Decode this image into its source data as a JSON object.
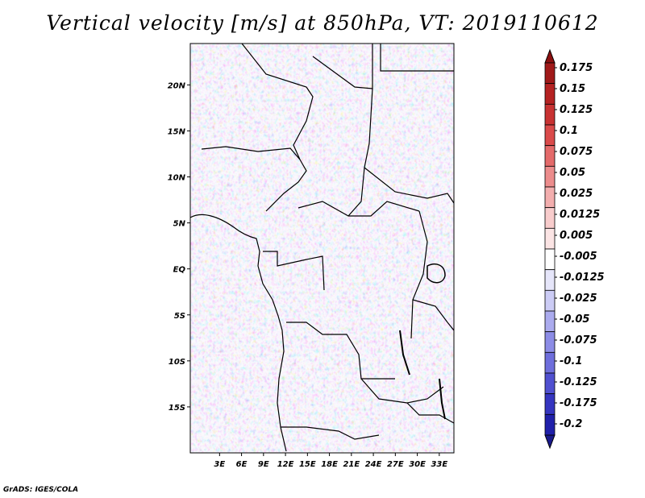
{
  "title": "Vertical velocity [m/s] at 850hPa, VT: 2019110612",
  "credit": "GrADS: IGES/COLA",
  "map": {
    "lon_range": [
      -1,
      35
    ],
    "lat_range": [
      -20,
      24.5
    ],
    "lat_ticks": [
      {
        "value": 20,
        "label": "20N"
      },
      {
        "value": 15,
        "label": "15N"
      },
      {
        "value": 10,
        "label": "10N"
      },
      {
        "value": 5,
        "label": "5N"
      },
      {
        "value": 0,
        "label": "EQ"
      },
      {
        "value": -5,
        "label": "5S"
      },
      {
        "value": -10,
        "label": "10S"
      },
      {
        "value": -15,
        "label": "15S"
      }
    ],
    "lon_ticks": [
      {
        "value": 3,
        "label": "3E"
      },
      {
        "value": 6,
        "label": "6E"
      },
      {
        "value": 9,
        "label": "9E"
      },
      {
        "value": 12,
        "label": "12E"
      },
      {
        "value": 15,
        "label": "15E"
      },
      {
        "value": 18,
        "label": "18E"
      },
      {
        "value": 21,
        "label": "21E"
      },
      {
        "value": 24,
        "label": "24E"
      },
      {
        "value": 27,
        "label": "27E"
      },
      {
        "value": 30,
        "label": "30E"
      },
      {
        "value": 33,
        "label": "33E"
      }
    ]
  },
  "colorbar": {
    "levels": [
      {
        "label": "0.175",
        "color": "#a01919"
      },
      {
        "label": "0.15",
        "color": "#b52222"
      },
      {
        "label": "0.125",
        "color": "#c83232"
      },
      {
        "label": "0.1",
        "color": "#da4a4a"
      },
      {
        "label": "0.075",
        "color": "#e46a6a"
      },
      {
        "label": "0.05",
        "color": "#ec8c8c"
      },
      {
        "label": "0.025",
        "color": "#f3aeae"
      },
      {
        "label": "0.0125",
        "color": "#f8cccc"
      },
      {
        "label": "0.005",
        "color": "#fbe4e4"
      },
      {
        "label": "-0.005",
        "color": "#ffffff"
      },
      {
        "label": "-0.0125",
        "color": "#e6e6fa"
      },
      {
        "label": "-0.025",
        "color": "#ccccf5"
      },
      {
        "label": "-0.05",
        "color": "#ababee"
      },
      {
        "label": "-0.075",
        "color": "#8c8ce6"
      },
      {
        "label": "-0.1",
        "color": "#6e6edc"
      },
      {
        "label": "-0.125",
        "color": "#5050d0"
      },
      {
        "label": "-0.175",
        "color": "#3535c0"
      },
      {
        "label": "-0.2",
        "color": "#2020aa"
      }
    ],
    "top_color": "#8b1010",
    "bottom_color": "#1a1a8c"
  }
}
